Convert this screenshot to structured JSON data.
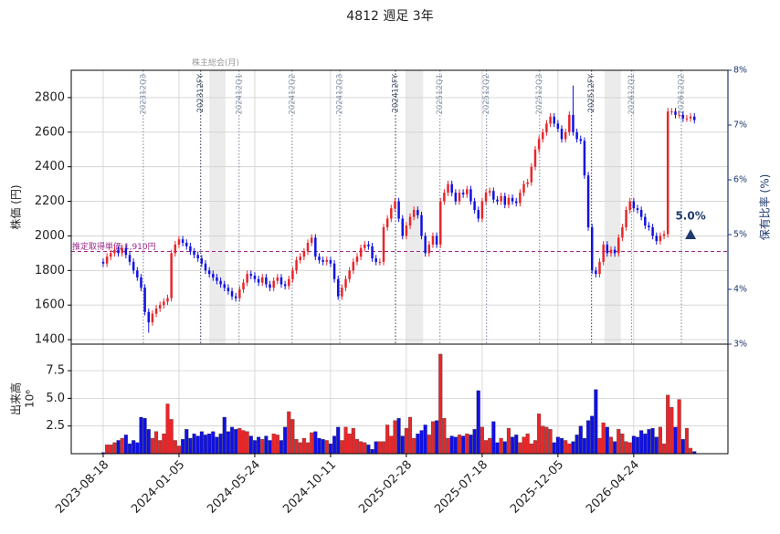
{
  "chart_data": {
    "type": "candlestick",
    "title": "4812 週足 3年",
    "ylabel": "株価 (円)",
    "y2label": "保有比率 (%)",
    "volume_label": "出来高",
    "volume_scale_label": "10⁶",
    "up_color": "#e8262a",
    "down_color": "#1010e6",
    "axis2_color": "#1f3a6e",
    "grid": true,
    "xlim": [
      "2023-06-20",
      "2026-10-15"
    ],
    "xticks": [
      "2023-08-18",
      "2024-01-05",
      "2024-05-24",
      "2024-10-11",
      "2025-02-28",
      "2025-07-18",
      "2025-12-05",
      "2026-04-24"
    ],
    "ylim": [
      1374,
      2958
    ],
    "yticks": [
      1400,
      1600,
      1800,
      2000,
      2200,
      2400,
      2600,
      2800
    ],
    "y2lim": [
      3,
      8
    ],
    "y2ticks": [
      {
        "value": 3,
        "label": "3%"
      },
      {
        "value": 4,
        "label": "4%"
      },
      {
        "value": 5,
        "label": "5%"
      },
      {
        "value": 6,
        "label": "6%"
      },
      {
        "value": 7,
        "label": "7%"
      },
      {
        "value": 8,
        "label": "8%"
      }
    ],
    "volume_ylim": [
      0,
      9.9
    ],
    "volume_yticks": [
      2.5,
      {
        "value": 5,
        "label": "5.0"
      },
      7.5
    ],
    "x": [
      "2023-08-18",
      "2023-08-25",
      "2023-09-01",
      "2023-09-08",
      "2023-09-15",
      "2023-09-22",
      "2023-09-29",
      "2023-10-06",
      "2023-10-13",
      "2023-10-20",
      "2023-10-27",
      "2023-11-03",
      "2023-11-10",
      "2023-11-17",
      "2023-11-24",
      "2023-12-01",
      "2023-12-08",
      "2023-12-15",
      "2023-12-22",
      "2023-12-29",
      "2024-01-05",
      "2024-01-12",
      "2024-01-19",
      "2024-01-26",
      "2024-02-02",
      "2024-02-09",
      "2024-02-16",
      "2024-02-23",
      "2024-03-01",
      "2024-03-08",
      "2024-03-15",
      "2024-03-22",
      "2024-03-29",
      "2024-04-05",
      "2024-04-12",
      "2024-04-19",
      "2024-04-26",
      "2024-05-03",
      "2024-05-10",
      "2024-05-17",
      "2024-05-24",
      "2024-05-31",
      "2024-06-07",
      "2024-06-14",
      "2024-06-21",
      "2024-06-28",
      "2024-07-05",
      "2024-07-12",
      "2024-07-19",
      "2024-07-26",
      "2024-08-02",
      "2024-08-09",
      "2024-08-16",
      "2024-08-23",
      "2024-08-30",
      "2024-09-06",
      "2024-09-13",
      "2024-09-20",
      "2024-09-27",
      "2024-10-04",
      "2024-10-11",
      "2024-10-18",
      "2024-10-25",
      "2024-11-01",
      "2024-11-08",
      "2024-11-15",
      "2024-11-22",
      "2024-11-29",
      "2024-12-06",
      "2024-12-13",
      "2024-12-20",
      "2024-12-27",
      "2025-01-03",
      "2025-01-10",
      "2025-01-17",
      "2025-01-24",
      "2025-01-31",
      "2025-02-07",
      "2025-02-14",
      "2025-02-21",
      "2025-02-28",
      "2025-03-07",
      "2025-03-14",
      "2025-03-21",
      "2025-03-28",
      "2025-04-04",
      "2025-04-11",
      "2025-04-18",
      "2025-04-25",
      "2025-05-02",
      "2025-05-09",
      "2025-05-16",
      "2025-05-23",
      "2025-05-30",
      "2025-06-06",
      "2025-06-13",
      "2025-06-20",
      "2025-06-27",
      "2025-07-04",
      "2025-07-11",
      "2025-07-18",
      "2025-07-25",
      "2025-08-01",
      "2025-08-08",
      "2025-08-15",
      "2025-08-22",
      "2025-08-29",
      "2025-09-05",
      "2025-09-12",
      "2025-09-19",
      "2025-09-26",
      "2025-10-03",
      "2025-10-10",
      "2025-10-17",
      "2025-10-24",
      "2025-10-31",
      "2025-11-07",
      "2025-11-14",
      "2025-11-21",
      "2025-11-28",
      "2025-12-05",
      "2025-12-12",
      "2025-12-19",
      "2025-12-26",
      "2026-01-02",
      "2026-01-09",
      "2026-01-16",
      "2026-01-23",
      "2026-01-30",
      "2026-02-06",
      "2026-02-13",
      "2026-02-20",
      "2026-02-27",
      "2026-03-06",
      "2026-03-13",
      "2026-03-20",
      "2026-03-27",
      "2026-04-03",
      "2026-04-10",
      "2026-04-17",
      "2026-04-24",
      "2026-05-01",
      "2026-05-08",
      "2026-05-15",
      "2026-05-22",
      "2026-05-29",
      "2026-06-05",
      "2026-06-12",
      "2026-06-19",
      "2026-06-26",
      "2026-07-03",
      "2026-07-10",
      "2026-07-17",
      "2026-07-24",
      "2026-07-31",
      "2026-08-07",
      "2026-08-14"
    ],
    "open": [
      1850,
      1840,
      1880,
      1900,
      1920,
      1900,
      1930,
      1890,
      1850,
      1800,
      1760,
      1700,
      1560,
      1500,
      1550,
      1580,
      1600,
      1620,
      1640,
      1900,
      1950,
      1980,
      1960,
      1940,
      1910,
      1890,
      1870,
      1840,
      1800,
      1780,
      1760,
      1740,
      1720,
      1700,
      1680,
      1650,
      1640,
      1690,
      1730,
      1780,
      1770,
      1750,
      1730,
      1760,
      1720,
      1700,
      1740,
      1760,
      1720,
      1710,
      1750,
      1800,
      1860,
      1880,
      1910,
      1960,
      1990,
      1880,
      1860,
      1850,
      1860,
      1840,
      1750,
      1650,
      1700,
      1750,
      1800,
      1850,
      1880,
      1930,
      1950,
      1940,
      1870,
      1850,
      1850,
      2050,
      2100,
      2160,
      2200,
      2100,
      2000,
      2060,
      2110,
      2150,
      2120,
      2000,
      1900,
      1950,
      2000,
      1950,
      2200,
      2250,
      2300,
      2250,
      2200,
      2250,
      2240,
      2270,
      2200,
      2150,
      2100,
      2200,
      2250,
      2260,
      2210,
      2200,
      2230,
      2180,
      2220,
      2200,
      2190,
      2250,
      2300,
      2310,
      2400,
      2500,
      2560,
      2600,
      2650,
      2690,
      2650,
      2620,
      2560,
      2600,
      2700,
      2600,
      2560,
      2550,
      2350,
      2050,
      1800,
      1780,
      1850,
      1950,
      1900,
      1920,
      1900,
      1990,
      2050,
      2150,
      2200,
      2160,
      2150,
      2110,
      2060,
      2050,
      2000,
      1970,
      2000,
      2010,
      2720,
      2720,
      2700,
      2700,
      2680,
      2680,
      2690
    ],
    "high": [
      1870,
      1900,
      1920,
      1940,
      1940,
      1950,
      1950,
      1910,
      1870,
      1820,
      1780,
      1720,
      1580,
      1570,
      1600,
      1620,
      1640,
      1660,
      1920,
      1970,
      2000,
      2000,
      1980,
      1960,
      1930,
      1910,
      1890,
      1860,
      1820,
      1800,
      1780,
      1760,
      1740,
      1720,
      1700,
      1670,
      1710,
      1750,
      1800,
      1800,
      1790,
      1770,
      1780,
      1780,
      1740,
      1760,
      1780,
      1780,
      1740,
      1770,
      1820,
      1880,
      1900,
      1930,
      1980,
      2010,
      2010,
      1900,
      1880,
      1880,
      1880,
      1860,
      1770,
      1720,
      1770,
      1820,
      1870,
      1900,
      1950,
      1970,
      1970,
      1960,
      1890,
      1870,
      2070,
      2120,
      2180,
      2220,
      2220,
      2120,
      2080,
      2130,
      2170,
      2170,
      2140,
      2020,
      1970,
      2020,
      2020,
      2220,
      2270,
      2320,
      2320,
      2270,
      2270,
      2270,
      2290,
      2290,
      2220,
      2170,
      2220,
      2270,
      2280,
      2280,
      2230,
      2250,
      2250,
      2240,
      2240,
      2220,
      2270,
      2320,
      2330,
      2420,
      2520,
      2580,
      2620,
      2670,
      2710,
      2710,
      2670,
      2640,
      2620,
      2720,
      2870,
      2620,
      2580,
      2570,
      2370,
      2070,
      1820,
      1870,
      1970,
      1970,
      1940,
      1940,
      2010,
      2070,
      2170,
      2220,
      2220,
      2180,
      2170,
      2130,
      2080,
      2070,
      2020,
      2020,
      2030,
      2740,
      2740,
      2740,
      2720,
      2720,
      2700,
      2710,
      2710
    ],
    "low": [
      1820,
      1820,
      1860,
      1880,
      1880,
      1880,
      1870,
      1830,
      1780,
      1740,
      1680,
      1540,
      1440,
      1480,
      1530,
      1560,
      1580,
      1600,
      1620,
      1880,
      1930,
      1940,
      1920,
      1890,
      1870,
      1850,
      1820,
      1780,
      1760,
      1740,
      1720,
      1700,
      1680,
      1660,
      1630,
      1620,
      1620,
      1670,
      1710,
      1750,
      1730,
      1710,
      1710,
      1700,
      1680,
      1680,
      1720,
      1700,
      1690,
      1690,
      1730,
      1780,
      1840,
      1860,
      1890,
      1940,
      1860,
      1840,
      1830,
      1830,
      1820,
      1730,
      1630,
      1630,
      1680,
      1730,
      1780,
      1830,
      1860,
      1910,
      1920,
      1850,
      1830,
      1830,
      1830,
      2030,
      2080,
      2140,
      2080,
      1980,
      1980,
      2040,
      2090,
      2100,
      1980,
      1880,
      1880,
      1930,
      1930,
      1930,
      2180,
      2230,
      2230,
      2180,
      2180,
      2220,
      2220,
      2180,
      2130,
      2080,
      2080,
      2180,
      2230,
      2190,
      2180,
      2180,
      2160,
      2160,
      2180,
      2170,
      2170,
      2230,
      2280,
      2290,
      2380,
      2480,
      2540,
      2580,
      2630,
      2630,
      2600,
      2540,
      2540,
      2580,
      2580,
      2540,
      2530,
      2330,
      2030,
      1780,
      1760,
      1760,
      1830,
      1880,
      1880,
      1880,
      1880,
      1970,
      2030,
      2130,
      2140,
      2130,
      2090,
      2040,
      2030,
      1980,
      1950,
      1950,
      1980,
      1990,
      2700,
      2680,
      2680,
      2660,
      2660,
      2660,
      2650
    ],
    "close": [
      1840,
      1880,
      1900,
      1920,
      1900,
      1930,
      1890,
      1850,
      1800,
      1760,
      1700,
      1560,
      1500,
      1550,
      1580,
      1600,
      1620,
      1640,
      1900,
      1950,
      1980,
      1960,
      1940,
      1910,
      1890,
      1870,
      1840,
      1800,
      1780,
      1760,
      1740,
      1720,
      1700,
      1680,
      1650,
      1640,
      1690,
      1730,
      1780,
      1770,
      1750,
      1730,
      1760,
      1720,
      1700,
      1740,
      1760,
      1720,
      1710,
      1750,
      1800,
      1860,
      1880,
      1910,
      1960,
      1990,
      1880,
      1860,
      1850,
      1860,
      1840,
      1750,
      1650,
      1700,
      1750,
      1800,
      1850,
      1880,
      1930,
      1950,
      1940,
      1870,
      1850,
      1850,
      2050,
      2100,
      2160,
      2200,
      2100,
      2000,
      2060,
      2110,
      2150,
      2120,
      2000,
      1900,
      1950,
      2000,
      1950,
      2200,
      2250,
      2300,
      2250,
      2200,
      2250,
      2240,
      2270,
      2200,
      2150,
      2100,
      2200,
      2250,
      2260,
      2210,
      2200,
      2230,
      2180,
      2220,
      2200,
      2190,
      2250,
      2300,
      2310,
      2400,
      2500,
      2560,
      2600,
      2650,
      2690,
      2650,
      2620,
      2560,
      2600,
      2700,
      2600,
      2560,
      2550,
      2350,
      2050,
      1800,
      1780,
      1850,
      1950,
      1900,
      1920,
      1900,
      1990,
      2050,
      2150,
      2200,
      2160,
      2150,
      2110,
      2060,
      2050,
      2000,
      1970,
      2000,
      2010,
      2720,
      2720,
      2700,
      2700,
      2680,
      2680,
      2690,
      2670
    ],
    "volume": [
      0.1,
      0.8,
      0.8,
      1.0,
      1.2,
      1.4,
      1.7,
      0.9,
      1.2,
      1.0,
      3.3,
      3.2,
      2.2,
      1.4,
      2.0,
      1.2,
      1.8,
      4.5,
      3.1,
      1.2,
      0.7,
      1.3,
      2.2,
      1.4,
      1.8,
      1.6,
      2.0,
      1.7,
      1.8,
      2.0,
      1.5,
      1.8,
      3.3,
      2.0,
      2.4,
      2.2,
      2.3,
      2.1,
      2.0,
      1.6,
      1.2,
      1.5,
      1.3,
      1.6,
      1.2,
      1.8,
      1.7,
      1.2,
      2.4,
      3.8,
      3.1,
      1.3,
      1.0,
      1.4,
      1.0,
      1.9,
      2.0,
      1.4,
      1.3,
      1.2,
      0.9,
      1.6,
      2.4,
      1.2,
      2.4,
      1.8,
      2.3,
      1.3,
      1.1,
      1.0,
      0.8,
      0.4,
      1.1,
      1.1,
      1.1,
      2.6,
      1.6,
      3.0,
      3.2,
      1.6,
      2.3,
      3.3,
      1.4,
      1.8,
      2.1,
      2.6,
      1.7,
      2.9,
      3.0,
      9.0,
      3.2,
      1.4,
      1.6,
      1.5,
      1.7,
      1.6,
      1.8,
      1.7,
      2.2,
      5.7,
      2.4,
      1.2,
      1.4,
      2.9,
      1.0,
      1.4,
      1.1,
      2.3,
      1.5,
      1.7,
      1.0,
      1.5,
      1.8,
      0.9,
      1.2,
      3.6,
      2.5,
      2.4,
      2.2,
      1.0,
      1.5,
      1.4,
      1.2,
      0.9,
      1.1,
      1.7,
      2.5,
      1.4,
      3.0,
      3.4,
      5.8,
      1.4,
      2.8,
      2.4,
      1.5,
      1.1,
      2.2,
      1.8,
      1.1,
      1.0,
      1.6,
      1.5,
      2.1,
      1.8,
      2.2,
      2.3,
      1.5,
      2.4,
      0.9,
      5.3,
      4.2,
      2.4,
      4.9,
      1.3,
      2.3,
      0.5,
      0.2
    ],
    "events": [
      {
        "label": "202312Q3",
        "date": "2023-10-31",
        "color": "#8a97aa"
      },
      {
        "label": "202312FY",
        "date": "2024-02-14",
        "color": "#4a5568"
      },
      {
        "label": "202412Q1",
        "date": "2024-04-25",
        "color": "#8a97aa"
      },
      {
        "label": "202412Q2",
        "date": "2024-08-01",
        "color": "#8a97aa"
      },
      {
        "label": "202412Q3",
        "date": "2024-10-28",
        "color": "#8a97aa"
      },
      {
        "label": "202412FY",
        "date": "2025-02-08",
        "color": "#4a5568"
      },
      {
        "label": "202512Q1",
        "date": "2025-05-01",
        "color": "#8a97aa"
      },
      {
        "label": "202512Q2",
        "date": "2025-07-26",
        "color": "#8a97aa"
      },
      {
        "label": "202512Q3",
        "date": "2025-11-01",
        "color": "#8a97aa"
      },
      {
        "label": "202512FY",
        "date": "2026-02-05",
        "color": "#4a5568"
      },
      {
        "label": "202612Q1",
        "date": "2026-04-20",
        "color": "#8a97aa"
      },
      {
        "label": "202612Q2",
        "date": "2026-07-21",
        "color": "#8a97aa"
      }
    ],
    "meeting_label": "株主総会(月)",
    "meetings": [
      [
        "2024-03-01",
        "2024-03-31"
      ],
      [
        "2025-03-01",
        "2025-03-31"
      ],
      [
        "2026-03-01",
        "2026-03-31"
      ]
    ],
    "cost_line": {
      "label": "推定取得単価 1,910円",
      "value": 1910,
      "color": "#9b2a8c"
    },
    "holding": {
      "date": "2026-08-07",
      "value": 5.0,
      "value_label": "5.0%"
    }
  }
}
